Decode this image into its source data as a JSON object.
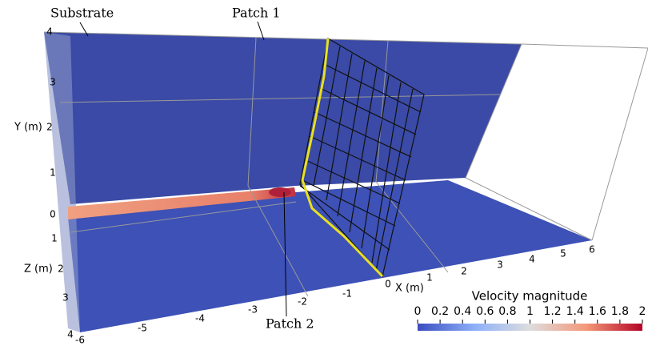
{
  "annotations": [
    "Substrate",
    "Patch 1",
    "Patch 2"
  ],
  "y_axis": {
    "label": "Y (m)",
    "ticks": [
      "0",
      "1",
      "2",
      "3",
      "4"
    ]
  },
  "z_axis": {
    "label": "Z (m)",
    "ticks": [
      "1",
      "2",
      "3",
      "4"
    ]
  },
  "x_axis": {
    "label": "X (m)",
    "ticks": [
      "-6",
      "-5",
      "-4",
      "-3",
      "-2",
      "-1",
      "0",
      "1",
      "2",
      "3",
      "4",
      "5",
      "6"
    ]
  },
  "colorbar": {
    "title": "Velocity magnitude",
    "range": [
      0,
      2
    ],
    "ticks": [
      0,
      0.2,
      0.4,
      0.6,
      0.8,
      1,
      1.2,
      1.4,
      1.6,
      1.8,
      2
    ]
  }
}
